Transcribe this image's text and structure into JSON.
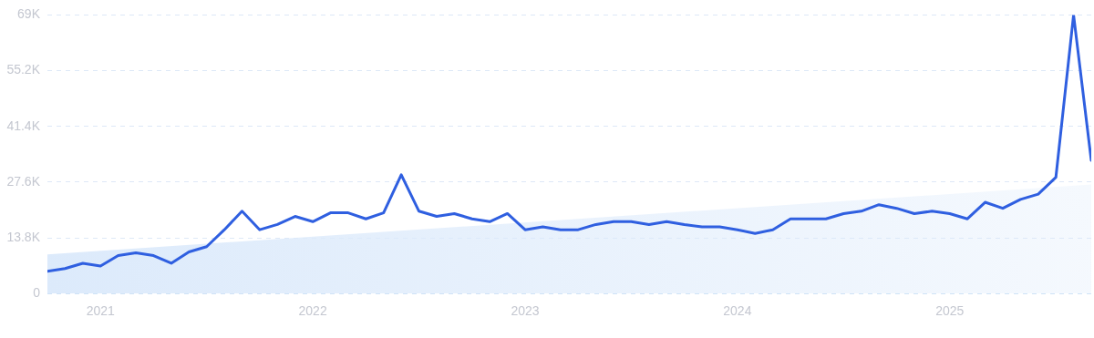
{
  "chart_data": {
    "type": "line",
    "xlim": [
      "2020-10",
      "2025-09"
    ],
    "xticks": [
      {
        "value": "2021-01",
        "label": "2021"
      },
      {
        "value": "2022-01",
        "label": "2022"
      },
      {
        "value": "2023-01",
        "label": "2023"
      },
      {
        "value": "2024-01",
        "label": "2024"
      },
      {
        "value": "2025-01",
        "label": "2025"
      }
    ],
    "ylim": [
      0,
      69000
    ],
    "yticks": [
      0,
      {
        "value": 13800,
        "label": "13.8K"
      },
      {
        "value": 27600,
        "label": "27.6K"
      },
      {
        "value": 41400,
        "label": "41.4K"
      },
      {
        "value": 55200,
        "label": "55.2K"
      },
      {
        "value": 69000,
        "label": "69K"
      }
    ],
    "grid": "y",
    "legend": false,
    "marker": "none",
    "line_style": "solid",
    "series": [
      {
        "type": "area",
        "color": "#dceafb",
        "x": [
          "2020-10",
          "2025-09"
        ],
        "values": [
          9700,
          27000
        ]
      },
      {
        "type": "line",
        "color": "#2f5fe0",
        "x": [
          "2020-10",
          "2020-11",
          "2020-12",
          "2021-01",
          "2021-02",
          "2021-03",
          "2021-04",
          "2021-05",
          "2021-06",
          "2021-07",
          "2021-08",
          "2021-09",
          "2021-10",
          "2021-11",
          "2021-12",
          "2022-01",
          "2022-02",
          "2022-03",
          "2022-04",
          "2022-05",
          "2022-06",
          "2022-07",
          "2022-08",
          "2022-09",
          "2022-10",
          "2022-11",
          "2022-12",
          "2023-01",
          "2023-02",
          "2023-03",
          "2023-04",
          "2023-05",
          "2023-06",
          "2023-07",
          "2023-08",
          "2023-09",
          "2023-10",
          "2023-11",
          "2023-12",
          "2024-01",
          "2024-02",
          "2024-03",
          "2024-04",
          "2024-05",
          "2024-06",
          "2024-07",
          "2024-08",
          "2024-09",
          "2024-10",
          "2024-11",
          "2024-12",
          "2025-01",
          "2025-02",
          "2025-03",
          "2025-04",
          "2025-05",
          "2025-06",
          "2025-07",
          "2025-08",
          "2025-09"
        ],
        "values": [
          5500,
          6200,
          7500,
          6800,
          9400,
          10100,
          9400,
          7500,
          10300,
          11600,
          15800,
          20400,
          15800,
          17100,
          19100,
          17800,
          20000,
          20000,
          18500,
          20000,
          29400,
          20400,
          19100,
          19800,
          18500,
          17800,
          19800,
          15800,
          16500,
          15800,
          15800,
          17100,
          17800,
          17800,
          17100,
          17800,
          17100,
          16500,
          16500,
          15800,
          14900,
          15800,
          18500,
          18500,
          18500,
          19800,
          20400,
          22000,
          21100,
          19800,
          20400,
          19800,
          18500,
          22600,
          21100,
          23300,
          24600,
          28800,
          69000,
          33000
        ]
      }
    ]
  }
}
